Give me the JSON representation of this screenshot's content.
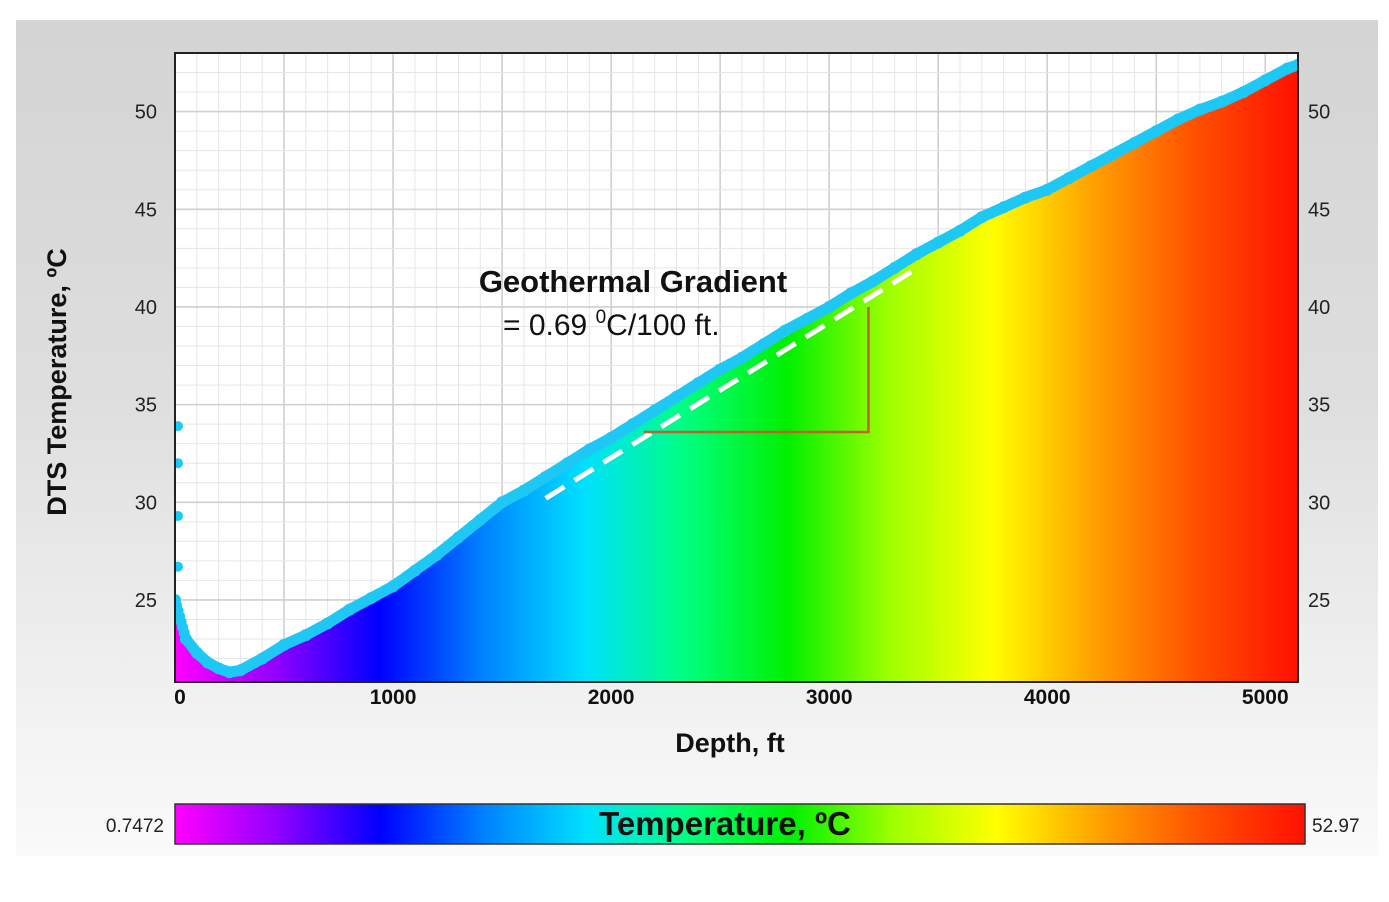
{
  "chart_data": {
    "type": "area",
    "title": "",
    "xlabel": "Depth, ft",
    "ylabel": "DTS Temperature, ºC",
    "xlim": [
      0,
      5150
    ],
    "ylim": [
      20.8,
      53
    ],
    "x_ticks": [
      "0",
      "1000",
      "2000",
      "3000",
      "4000",
      "5000"
    ],
    "x_tick_values": [
      0,
      1000,
      2000,
      3000,
      4000,
      5000
    ],
    "y_ticks": [
      "25",
      "30",
      "35",
      "40",
      "45",
      "50"
    ],
    "y_tick_values": [
      25,
      30,
      35,
      40,
      45,
      50
    ],
    "grid": true,
    "series": [
      {
        "name": "",
        "marker_color": "#1ec8f5",
        "x": [
          0,
          50,
          100,
          150,
          200,
          250,
          300,
          400,
          500,
          600,
          700,
          800,
          900,
          1000,
          1100,
          1200,
          1300,
          1400,
          1500,
          1600,
          1700,
          1800,
          1900,
          2000,
          2100,
          2200,
          2300,
          2400,
          2500,
          2600,
          2700,
          2800,
          2900,
          3000,
          3100,
          3200,
          3300,
          3400,
          3500,
          3600,
          3700,
          3800,
          3900,
          4000,
          4100,
          4200,
          4300,
          4400,
          4500,
          4600,
          4700,
          4800,
          4900,
          5000,
          5100,
          5150
        ],
        "y": [
          25.0,
          23.0,
          22.3,
          21.8,
          21.5,
          21.3,
          21.4,
          22.0,
          22.7,
          23.2,
          23.8,
          24.5,
          25.1,
          25.7,
          26.5,
          27.3,
          28.2,
          29.1,
          30.0,
          30.6,
          31.3,
          32.0,
          32.7,
          33.3,
          34.0,
          34.7,
          35.4,
          36.1,
          36.8,
          37.4,
          38.1,
          38.8,
          39.4,
          40.0,
          40.7,
          41.3,
          42.0,
          42.7,
          43.3,
          43.9,
          44.6,
          45.1,
          45.6,
          46.0,
          46.6,
          47.2,
          47.8,
          48.4,
          49.0,
          49.6,
          50.1,
          50.5,
          51.0,
          51.6,
          52.2,
          52.4
        ]
      }
    ],
    "outliers": {
      "x": [
        0,
        0,
        0,
        0
      ],
      "y": [
        33.9,
        32.0,
        29.3,
        26.7
      ]
    },
    "colorbar": {
      "label": "Temperature, ºC",
      "min_label": "0.7472",
      "max_label": "52.97",
      "stops": [
        "#ff00ff",
        "#9000ff",
        "#0000ff",
        "#0080ff",
        "#00e0ff",
        "#00ff80",
        "#00f000",
        "#a0ff00",
        "#ffff00",
        "#ffa000",
        "#ff5000",
        "#ff1000"
      ]
    },
    "annotations": [
      {
        "text_line1": "Geothermal Gradient",
        "text_line2_prefix": "= 0.69 ",
        "text_line2_sup": "0",
        "text_line2_suffix": "C/100 ft."
      }
    ],
    "gradient_line": {
      "x": [
        1700,
        3420
      ],
      "y": [
        30.2,
        42.1
      ],
      "color": "#ffffff",
      "style": "dashed"
    },
    "gradient_triangle": {
      "x1": 2150,
      "x2": 3180,
      "y_low": 33.6,
      "y_high": 40.0,
      "color": "#c0622a"
    }
  }
}
